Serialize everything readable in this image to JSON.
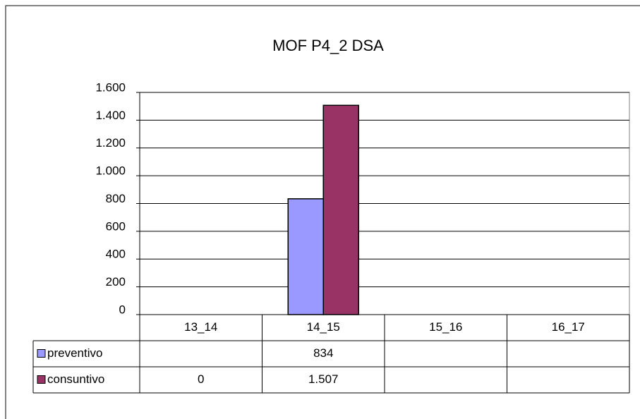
{
  "chart_data": {
    "type": "bar",
    "title": "MOF P4_2 DSA",
    "categories": [
      "13_14",
      "14_15",
      "15_16",
      "16_17"
    ],
    "series": [
      {
        "name": "preventivo",
        "color": "#9999ff",
        "values": [
          null,
          834,
          null,
          null
        ],
        "value_labels": [
          null,
          "834",
          null,
          null
        ]
      },
      {
        "name": "consuntivo",
        "color": "#993366",
        "values": [
          0,
          1507,
          null,
          null
        ],
        "value_labels": [
          "0",
          "1.507",
          null,
          null
        ]
      }
    ],
    "ylim": [
      0,
      1600
    ],
    "yticks": [
      0,
      200,
      400,
      600,
      800,
      {
        "value": 1000,
        "label": "1.000"
      },
      {
        "value": 1200,
        "label": "1.200"
      },
      {
        "value": 1400,
        "label": "1.400"
      },
      {
        "value": 1600,
        "label": "1.600"
      }
    ],
    "grid": true
  }
}
